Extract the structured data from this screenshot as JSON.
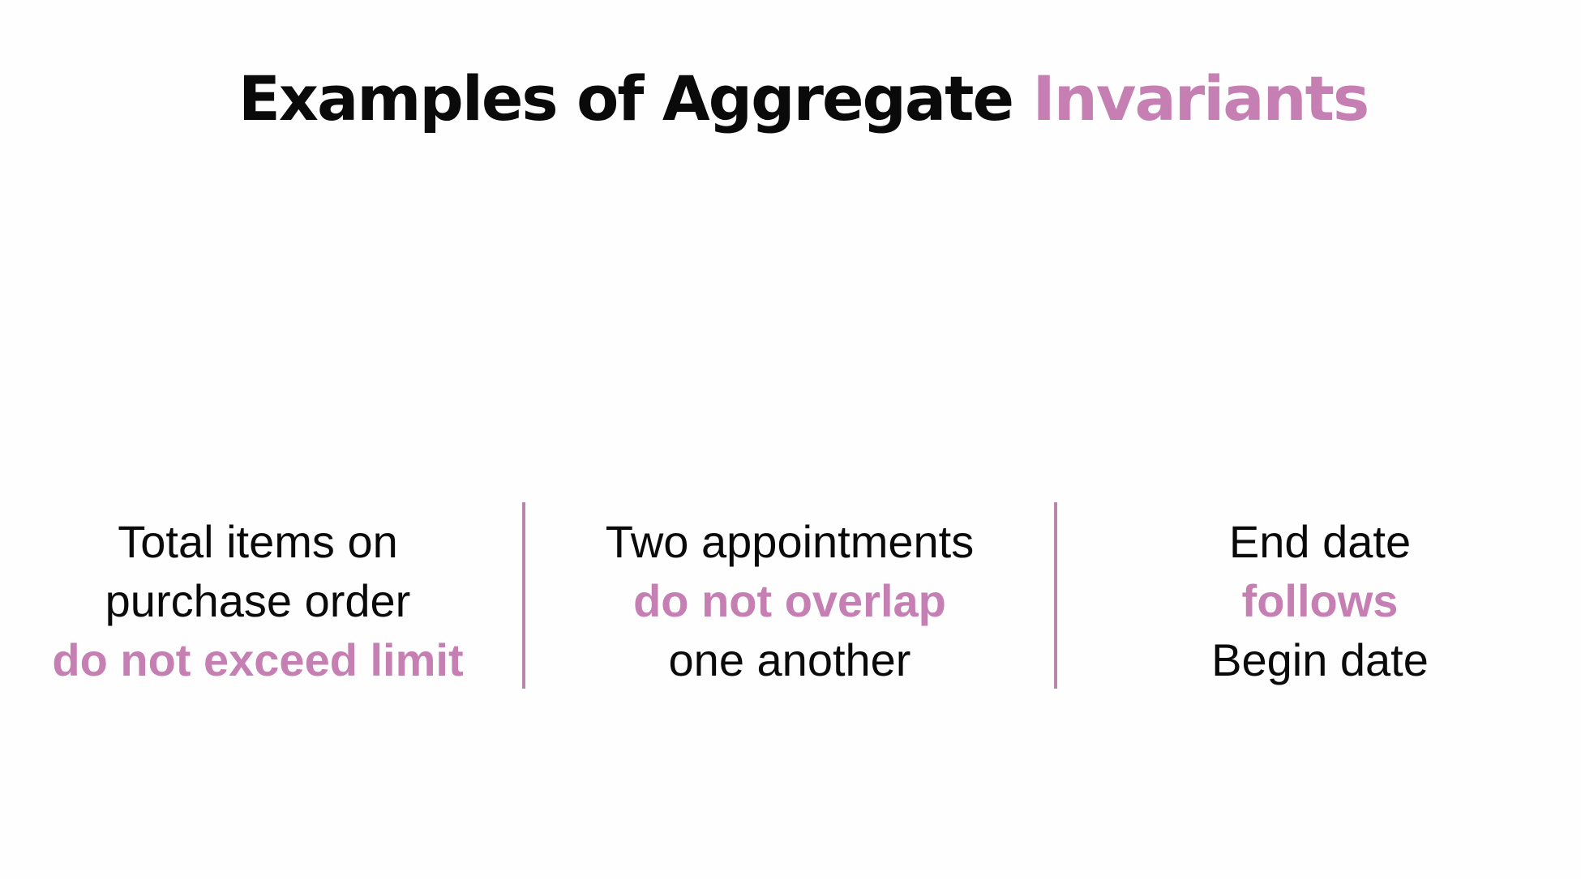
{
  "slide": {
    "title": {
      "prefix": "Examples of Aggregate",
      "accent": "Invariants"
    },
    "accent_color": "#c57fb3",
    "examples": [
      {
        "lines": [
          "Total items on",
          "purchase order",
          "do not exceed limit"
        ],
        "highlight_line": 3
      },
      {
        "lines": [
          "Two appointments",
          "do not overlap",
          "one another"
        ],
        "highlight_line": 2
      },
      {
        "lines": [
          "End date",
          "follows",
          "Begin date"
        ],
        "highlight_line": 2
      }
    ]
  }
}
